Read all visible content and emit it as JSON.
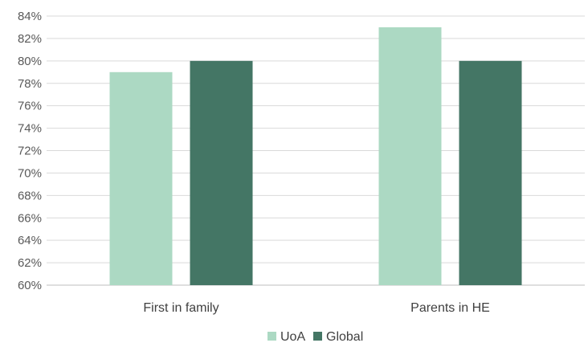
{
  "chart_data": {
    "type": "bar",
    "categories": [
      "First in family",
      "Parents in HE"
    ],
    "series": [
      {
        "name": "UoA",
        "values": [
          79,
          83
        ],
        "color": "#acd9c3"
      },
      {
        "name": "Global",
        "values": [
          80,
          80
        ],
        "color": "#447665"
      }
    ],
    "ylim": [
      60,
      84
    ],
    "ytick_step": 2,
    "ytick_labels": [
      "60%",
      "62%",
      "64%",
      "66%",
      "68%",
      "70%",
      "72%",
      "74%",
      "76%",
      "78%",
      "80%",
      "82%",
      "84%"
    ],
    "title": "",
    "xlabel": "",
    "ylabel": "",
    "grid": true,
    "legend_position": "bottom"
  }
}
